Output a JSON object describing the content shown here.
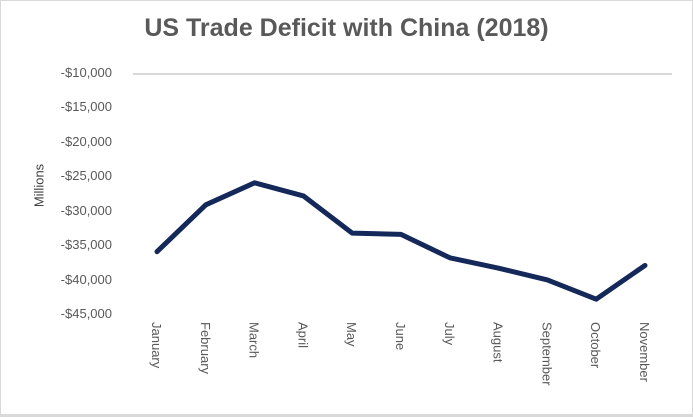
{
  "chart_data": {
    "type": "line",
    "title": "US Trade Deficit with China (2018)",
    "xlabel": "",
    "ylabel": "Millions",
    "ylim": [
      -45000,
      -10000
    ],
    "y_ticks": [
      -10000,
      -15000,
      -20000,
      -25000,
      -30000,
      -35000,
      -40000,
      -45000
    ],
    "y_tick_labels": [
      "-$10,000",
      "-$15,000",
      "-$20,000",
      "-$25,000",
      "-$30,000",
      "-$35,000",
      "-$40,000",
      "-$45,000"
    ],
    "categories": [
      "January",
      "February",
      "March",
      "April",
      "May",
      "June",
      "July",
      "August",
      "September",
      "October",
      "November"
    ],
    "series": [
      {
        "name": "US Trade Deficit with China",
        "color": "#14285a",
        "values": [
          -35800,
          -29000,
          -25800,
          -27700,
          -33100,
          -33300,
          -36700,
          -38200,
          -39900,
          -42700,
          -37800
        ]
      }
    ],
    "grid": false,
    "legend": "none",
    "axis_line_color": "#d9d9d9"
  }
}
